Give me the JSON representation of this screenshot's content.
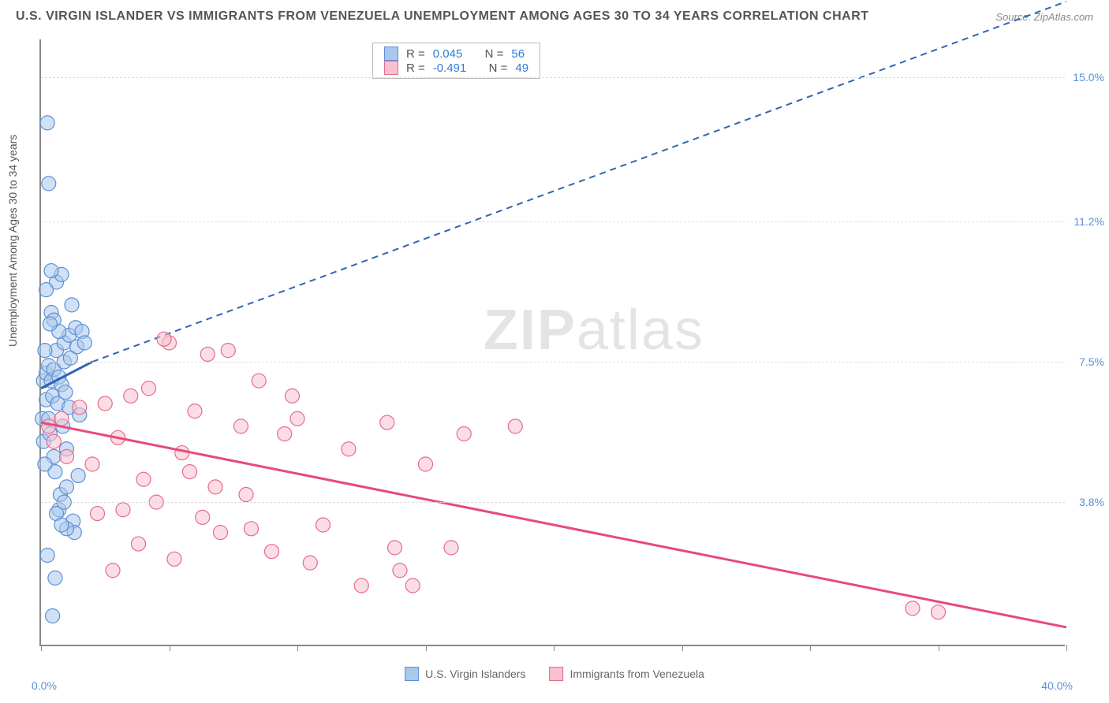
{
  "title": "U.S. VIRGIN ISLANDER VS IMMIGRANTS FROM VENEZUELA UNEMPLOYMENT AMONG AGES 30 TO 34 YEARS CORRELATION CHART",
  "source": "Source: ZipAtlas.com",
  "y_axis_label": "Unemployment Among Ages 30 to 34 years",
  "watermark": "ZIPatlas",
  "chart": {
    "type": "scatter",
    "xlim": [
      0,
      40
    ],
    "ylim": [
      0,
      16
    ],
    "x_min_label": "0.0%",
    "x_max_label": "40.0%",
    "x_ticks": [
      0,
      5,
      10,
      15,
      20,
      25,
      30,
      35,
      40
    ],
    "y_ticks": [
      {
        "v": 3.8,
        "label": "3.8%"
      },
      {
        "v": 7.5,
        "label": "7.5%"
      },
      {
        "v": 11.2,
        "label": "11.2%"
      },
      {
        "v": 15.0,
        "label": "15.0%"
      }
    ],
    "grid_color": "#dddddd",
    "background": "#ffffff",
    "series": [
      {
        "name": "U.S. Virgin Islanders",
        "fill": "#a9c8ec",
        "stroke": "#5b8fd6",
        "r_value": "0.045",
        "n_value": "56",
        "trend": {
          "x1": 0,
          "y1": 6.8,
          "x2": 2.0,
          "y2": 7.5,
          "dash_x2": 40,
          "dash_y2": 17,
          "color": "#2e66b5"
        },
        "points": [
          [
            0.05,
            6.0
          ],
          [
            0.1,
            5.4
          ],
          [
            0.1,
            7.0
          ],
          [
            0.2,
            6.5
          ],
          [
            0.2,
            7.2
          ],
          [
            0.25,
            13.8
          ],
          [
            0.3,
            6.0
          ],
          [
            0.3,
            7.4
          ],
          [
            0.35,
            5.6
          ],
          [
            0.4,
            7.0
          ],
          [
            0.4,
            8.8
          ],
          [
            0.45,
            6.6
          ],
          [
            0.5,
            7.3
          ],
          [
            0.5,
            5.0
          ],
          [
            0.55,
            4.6
          ],
          [
            0.6,
            7.8
          ],
          [
            0.6,
            9.6
          ],
          [
            0.65,
            6.4
          ],
          [
            0.7,
            7.1
          ],
          [
            0.7,
            3.6
          ],
          [
            0.75,
            4.0
          ],
          [
            0.8,
            6.9
          ],
          [
            0.8,
            9.8
          ],
          [
            0.85,
            5.8
          ],
          [
            0.9,
            7.5
          ],
          [
            0.9,
            8.0
          ],
          [
            0.95,
            6.7
          ],
          [
            1.0,
            5.2
          ],
          [
            1.0,
            4.2
          ],
          [
            0.3,
            12.2
          ],
          [
            1.1,
            6.3
          ],
          [
            1.1,
            8.2
          ],
          [
            1.15,
            7.6
          ],
          [
            1.2,
            9.0
          ],
          [
            1.25,
            3.3
          ],
          [
            1.3,
            3.0
          ],
          [
            1.35,
            8.4
          ],
          [
            1.4,
            7.9
          ],
          [
            1.45,
            4.5
          ],
          [
            1.5,
            6.1
          ],
          [
            0.6,
            3.5
          ],
          [
            1.0,
            3.1
          ],
          [
            0.2,
            9.4
          ],
          [
            0.4,
            9.9
          ],
          [
            0.5,
            8.6
          ],
          [
            0.7,
            8.3
          ],
          [
            0.9,
            3.8
          ],
          [
            0.15,
            4.8
          ],
          [
            0.35,
            8.5
          ],
          [
            0.45,
            0.8
          ],
          [
            0.55,
            1.8
          ],
          [
            0.25,
            2.4
          ],
          [
            0.8,
            3.2
          ],
          [
            1.6,
            8.3
          ],
          [
            1.7,
            8.0
          ],
          [
            0.15,
            7.8
          ]
        ]
      },
      {
        "name": "Immigrants from Venezuela",
        "fill": "#f7c1cf",
        "stroke": "#e76a8b",
        "r_value": "-0.491",
        "n_value": "49",
        "trend": {
          "x1": 0,
          "y1": 5.9,
          "x2": 40,
          "y2": 0.5,
          "color": "#e74a7a"
        },
        "points": [
          [
            0.3,
            5.8
          ],
          [
            0.5,
            5.4
          ],
          [
            0.8,
            6.0
          ],
          [
            1.0,
            5.0
          ],
          [
            1.5,
            6.3
          ],
          [
            2.0,
            4.8
          ],
          [
            2.2,
            3.5
          ],
          [
            2.5,
            6.4
          ],
          [
            2.8,
            2.0
          ],
          [
            3.0,
            5.5
          ],
          [
            3.2,
            3.6
          ],
          [
            3.5,
            6.6
          ],
          [
            3.8,
            2.7
          ],
          [
            4.0,
            4.4
          ],
          [
            4.2,
            6.8
          ],
          [
            4.5,
            3.8
          ],
          [
            5.0,
            8.0
          ],
          [
            5.2,
            2.3
          ],
          [
            5.5,
            5.1
          ],
          [
            6.0,
            6.2
          ],
          [
            6.3,
            3.4
          ],
          [
            6.5,
            7.7
          ],
          [
            7.0,
            3.0
          ],
          [
            7.3,
            7.8
          ],
          [
            7.8,
            5.8
          ],
          [
            8.0,
            4.0
          ],
          [
            8.2,
            3.1
          ],
          [
            8.5,
            7.0
          ],
          [
            9.0,
            2.5
          ],
          [
            9.5,
            5.6
          ],
          [
            10.0,
            6.0
          ],
          [
            10.5,
            2.2
          ],
          [
            11.0,
            3.2
          ],
          [
            12.0,
            5.2
          ],
          [
            12.5,
            1.6
          ],
          [
            13.5,
            5.9
          ],
          [
            13.8,
            2.6
          ],
          [
            14.5,
            1.6
          ],
          [
            15.0,
            4.8
          ],
          [
            16.5,
            5.6
          ],
          [
            16.0,
            2.6
          ],
          [
            18.5,
            5.8
          ],
          [
            14.0,
            2.0
          ],
          [
            5.8,
            4.6
          ],
          [
            4.8,
            8.1
          ],
          [
            6.8,
            4.2
          ],
          [
            9.8,
            6.6
          ],
          [
            34.0,
            1.0
          ],
          [
            35.0,
            0.9
          ]
        ]
      }
    ]
  },
  "legend_bottom": [
    {
      "label": "U.S. Virgin Islanders",
      "fill": "#a9c8ec",
      "stroke": "#5b8fd6"
    },
    {
      "label": "Immigrants from Venezuela",
      "fill": "#f7c1cf",
      "stroke": "#e76a8b"
    }
  ]
}
